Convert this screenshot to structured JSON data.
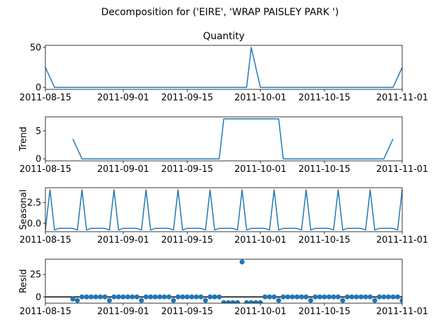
{
  "figure": {
    "suptitle": "Decomposition for ('EIRE', 'WRAP PAISLEY PARK ')",
    "colors": {
      "line": "#1f77b4",
      "axis": "#000000",
      "zero_line": "#000000"
    }
  },
  "chart_data": [
    {
      "type": "line",
      "title": "Quantity",
      "xlabel": "",
      "ylabel": "",
      "x_tick_labels": [
        "2011-08-15",
        "2011-09-01",
        "2011-09-15",
        "2011-10-01",
        "2011-10-15",
        "2011-11-01"
      ],
      "xlim": [
        "2011-08-15",
        "2011-11-01"
      ],
      "ylim": [
        -2.5,
        52.5
      ],
      "y_ticks": [
        0,
        50
      ],
      "series": [
        {
          "x_start": "2011-08-15",
          "x_end": "2011-11-01",
          "points": [
            [
              "2011-08-15",
              25
            ],
            [
              "2011-08-17",
              0
            ],
            [
              "2011-09-28",
              0
            ],
            [
              "2011-09-29",
              50
            ],
            [
              "2011-10-01",
              0
            ],
            [
              "2011-10-30",
              0
            ],
            [
              "2011-11-01",
              25
            ]
          ]
        }
      ]
    },
    {
      "type": "line",
      "title": "",
      "xlabel": "",
      "ylabel": "Trend",
      "x_tick_labels": [
        "2011-08-15",
        "2011-09-01",
        "2011-09-15",
        "2011-10-01",
        "2011-10-15",
        "2011-11-01"
      ],
      "xlim": [
        "2011-08-15",
        "2011-11-01"
      ],
      "ylim": [
        -0.36,
        7.5
      ],
      "y_ticks": [
        0,
        5
      ],
      "series": [
        {
          "points": [
            [
              "2011-08-21",
              3.57
            ],
            [
              "2011-08-23",
              0
            ],
            [
              "2011-09-22",
              0
            ],
            [
              "2011-09-23",
              7.14
            ],
            [
              "2011-10-05",
              7.14
            ],
            [
              "2011-10-06",
              0
            ],
            [
              "2011-10-28",
              0
            ],
            [
              "2011-10-30",
              3.57
            ]
          ]
        }
      ]
    },
    {
      "type": "line",
      "title": "",
      "xlabel": "",
      "ylabel": "Seasonal",
      "x_tick_labels": [
        "2011-08-15",
        "2011-09-01",
        "2011-09-15",
        "2011-10-01",
        "2011-10-15",
        "2011-11-01"
      ],
      "xlim": [
        "2011-08-15",
        "2011-11-01"
      ],
      "ylim": [
        -1.0,
        4.3
      ],
      "y_ticks": [
        0.0,
        2.5
      ],
      "y_tick_labels": [
        "0.0",
        "2.5"
      ],
      "series": [
        {
          "period_days": 7,
          "first_peak": "2011-08-23",
          "peak": 4.05,
          "base": -0.6,
          "low": -0.8
        }
      ]
    },
    {
      "type": "scatter",
      "title": "",
      "xlabel": "",
      "ylabel": "Resid",
      "x_tick_labels": [
        "2011-08-15",
        "2011-09-01",
        "2011-09-15",
        "2011-10-01",
        "2011-10-15",
        "2011-11-01"
      ],
      "xlim": [
        "2011-08-15",
        "2011-11-01"
      ],
      "ylim": [
        -7,
        42
      ],
      "y_ticks": [
        0,
        25
      ],
      "zero_line": true,
      "series": [
        {
          "points": [
            [
              "2011-08-21",
              -2.4
            ],
            [
              "2011-08-22",
              -3.9
            ],
            [
              "2011-08-23",
              0
            ],
            [
              "2011-08-24",
              0
            ],
            [
              "2011-08-25",
              0
            ],
            [
              "2011-08-26",
              0
            ],
            [
              "2011-08-27",
              0
            ],
            [
              "2011-08-28",
              0
            ],
            [
              "2011-08-29",
              -3.9
            ],
            [
              "2011-08-30",
              0
            ],
            [
              "2011-08-31",
              0
            ],
            [
              "2011-09-01",
              0
            ],
            [
              "2011-09-02",
              0
            ],
            [
              "2011-09-03",
              0
            ],
            [
              "2011-09-04",
              0
            ],
            [
              "2011-09-05",
              -3.9
            ],
            [
              "2011-09-06",
              0
            ],
            [
              "2011-09-07",
              0
            ],
            [
              "2011-09-08",
              0
            ],
            [
              "2011-09-09",
              0
            ],
            [
              "2011-09-10",
              0
            ],
            [
              "2011-09-11",
              0
            ],
            [
              "2011-09-12",
              -3.9
            ],
            [
              "2011-09-13",
              0
            ],
            [
              "2011-09-14",
              0
            ],
            [
              "2011-09-15",
              0
            ],
            [
              "2011-09-16",
              0
            ],
            [
              "2011-09-17",
              0
            ],
            [
              "2011-09-18",
              0
            ],
            [
              "2011-09-19",
              -3.9
            ],
            [
              "2011-09-20",
              0
            ],
            [
              "2011-09-21",
              0
            ],
            [
              "2011-09-22",
              0
            ],
            [
              "2011-09-23",
              -6.3
            ],
            [
              "2011-09-24",
              -6.3
            ],
            [
              "2011-09-25",
              -6.3
            ],
            [
              "2011-09-26",
              -6.3
            ],
            [
              "2011-09-27",
              38.9
            ],
            [
              "2011-09-28",
              -6.3
            ],
            [
              "2011-09-29",
              -6.3
            ],
            [
              "2011-09-30",
              -6.3
            ],
            [
              "2011-10-01",
              -6.3
            ],
            [
              "2011-10-02",
              0
            ],
            [
              "2011-10-03",
              0
            ],
            [
              "2011-10-04",
              0
            ],
            [
              "2011-10-05",
              -3.9
            ],
            [
              "2011-10-06",
              0
            ],
            [
              "2011-10-07",
              0
            ],
            [
              "2011-10-08",
              0
            ],
            [
              "2011-10-09",
              0
            ],
            [
              "2011-10-10",
              0
            ],
            [
              "2011-10-11",
              0
            ],
            [
              "2011-10-12",
              -3.9
            ],
            [
              "2011-10-13",
              0
            ],
            [
              "2011-10-14",
              0
            ],
            [
              "2011-10-15",
              0
            ],
            [
              "2011-10-16",
              0
            ],
            [
              "2011-10-17",
              0
            ],
            [
              "2011-10-18",
              0
            ],
            [
              "2011-10-19",
              -3.9
            ],
            [
              "2011-10-20",
              0
            ],
            [
              "2011-10-21",
              0
            ],
            [
              "2011-10-22",
              0
            ],
            [
              "2011-10-23",
              0
            ],
            [
              "2011-10-24",
              0
            ],
            [
              "2011-10-25",
              0
            ],
            [
              "2011-10-26",
              -3.9
            ],
            [
              "2011-10-27",
              0
            ],
            [
              "2011-10-28",
              0
            ],
            [
              "2011-10-29",
              0
            ],
            [
              "2011-10-30",
              0
            ],
            [
              "2011-10-31",
              0
            ],
            [
              "2011-11-01",
              -3.9
            ],
            [
              "2011-11-02",
              0
            ],
            [
              "2011-11-03",
              -2.4
            ],
            [
              "2011-11-04",
              -2.4
            ]
          ]
        }
      ]
    }
  ]
}
